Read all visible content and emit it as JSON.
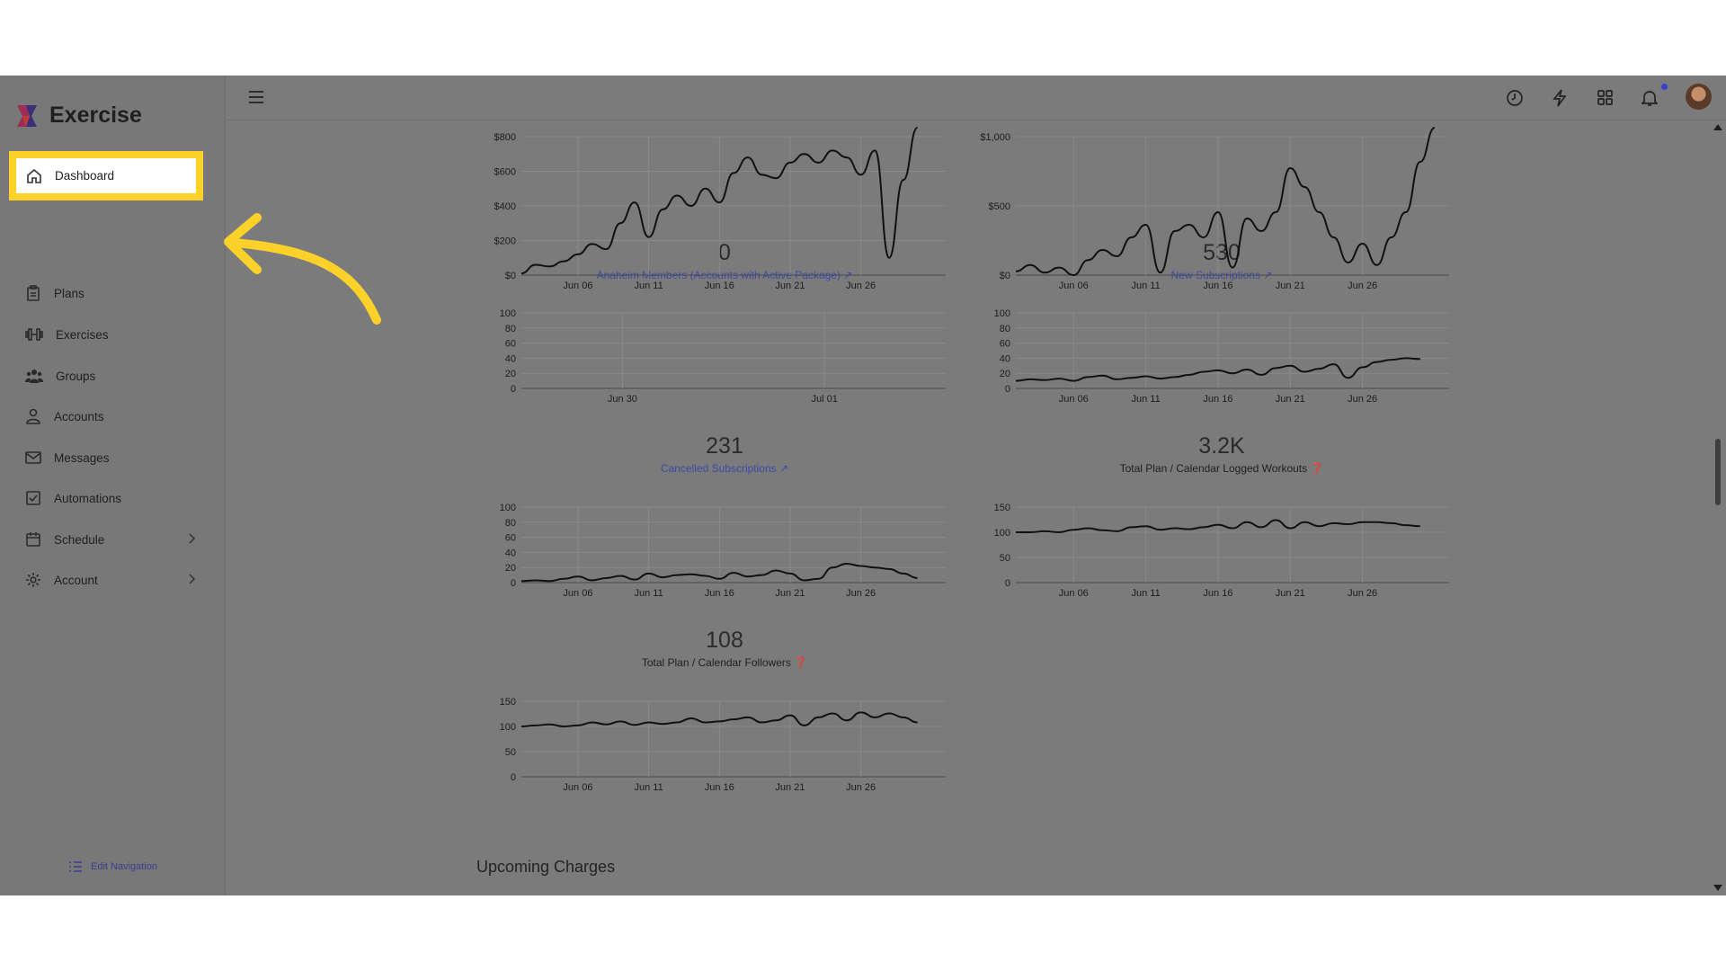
{
  "app": {
    "brand": "Exercise"
  },
  "sidebar": {
    "items": [
      {
        "label": "Dashboard",
        "icon": "home-icon",
        "active": true
      },
      {
        "label": "Plans",
        "icon": "clipboard-icon"
      },
      {
        "label": "Exercises",
        "icon": "dumbbell-icon"
      },
      {
        "label": "Groups",
        "icon": "users-icon"
      },
      {
        "label": "Accounts",
        "icon": "user-icon"
      },
      {
        "label": "Messages",
        "icon": "envelope-icon"
      },
      {
        "label": "Automations",
        "icon": "check-square-icon"
      },
      {
        "label": "Schedule",
        "icon": "calendar-icon",
        "expandable": true
      },
      {
        "label": "Account",
        "icon": "gear-icon",
        "expandable": true
      }
    ],
    "edit_navigation": "Edit Navigation"
  },
  "topbar": {
    "icons": [
      "menu-icon",
      "clock-icon",
      "lightning-icon",
      "apps-grid-icon",
      "bell-icon",
      "avatar"
    ],
    "notification_dot_color": "#3c3fd3"
  },
  "colors": {
    "highlight": "#fcd12a",
    "overlay": "#7b7b7b",
    "link": "#3c4aa8"
  },
  "metrics": {
    "members": {
      "value": "0",
      "label": "Anaheim Members (Accounts with Active Package)"
    },
    "new_subs": {
      "value": "530",
      "label": "New Subscriptions"
    },
    "cancelled": {
      "value": "231",
      "label": "Cancelled Subscriptions"
    },
    "workouts": {
      "value": "3.2K",
      "label": "Total Plan / Calendar Logged Workouts"
    },
    "followers": {
      "value": "108",
      "label": "Total Plan / Calendar Followers"
    }
  },
  "chart_data": [
    {
      "id": "c1",
      "type": "line",
      "y_ticks": [
        "$0",
        "$200",
        "$400",
        "$600",
        "$800"
      ],
      "ylim": [
        0,
        800
      ],
      "x_ticks": [
        "Jun 06",
        "Jun 11",
        "Jun 16",
        "Jun 21",
        "Jun 26"
      ],
      "x_tick_pos": [
        4,
        9,
        14,
        19,
        24
      ],
      "xlim": [
        0,
        30
      ],
      "series": [
        {
          "x": [
            0,
            1,
            2,
            3,
            4,
            5,
            6,
            7,
            8,
            9,
            10,
            11,
            12,
            13,
            14,
            15,
            16,
            17,
            18,
            19,
            20,
            21,
            22,
            23,
            24,
            25,
            26,
            27,
            28
          ],
          "y": [
            10,
            60,
            50,
            80,
            120,
            180,
            150,
            300,
            420,
            220,
            380,
            460,
            400,
            500,
            420,
            590,
            680,
            580,
            560,
            650,
            700,
            650,
            720,
            680,
            580,
            720,
            100,
            550,
            900
          ]
        }
      ]
    },
    {
      "id": "c2",
      "type": "line",
      "y_ticks": [
        "$0",
        "$500",
        "$1,000"
      ],
      "ylim": [
        0,
        1100
      ],
      "x_ticks": [
        "Jun 06",
        "Jun 11",
        "Jun 16",
        "Jun 21",
        "Jun 26"
      ],
      "x_tick_pos": [
        4,
        9,
        14,
        19,
        24
      ],
      "xlim": [
        0,
        30
      ],
      "series": [
        {
          "x": [
            0,
            1,
            2,
            3,
            4,
            5,
            6,
            7,
            8,
            9,
            10,
            11,
            12,
            13,
            14,
            15,
            16,
            17,
            18,
            19,
            20,
            21,
            22,
            23,
            24,
            25,
            26,
            27,
            28,
            29
          ],
          "y": [
            30,
            80,
            20,
            60,
            0,
            120,
            200,
            150,
            300,
            400,
            20,
            350,
            400,
            300,
            500,
            60,
            450,
            350,
            500,
            850,
            700,
            500,
            300,
            100,
            250,
            80,
            300,
            500,
            900,
            1200
          ]
        }
      ]
    },
    {
      "id": "c3",
      "type": "line",
      "y_ticks": [
        "0",
        "20",
        "40",
        "60",
        "80",
        "100"
      ],
      "ylim": [
        0,
        100
      ],
      "x_ticks": [
        "Jun 30",
        "Jul 01"
      ],
      "x_tick_pos": [
        1,
        3
      ],
      "xlim": [
        0,
        4.2
      ],
      "series": []
    },
    {
      "id": "c4",
      "type": "line",
      "y_ticks": [
        "0",
        "20",
        "40",
        "60",
        "80",
        "100"
      ],
      "ylim": [
        0,
        100
      ],
      "x_ticks": [
        "Jun 06",
        "Jun 11",
        "Jun 16",
        "Jun 21",
        "Jun 26"
      ],
      "x_tick_pos": [
        4,
        9,
        14,
        19,
        24
      ],
      "xlim": [
        0,
        30
      ],
      "series": [
        {
          "x": [
            0,
            1,
            2,
            3,
            4,
            5,
            6,
            7,
            8,
            9,
            10,
            11,
            12,
            13,
            14,
            15,
            16,
            17,
            18,
            19,
            20,
            21,
            22,
            23,
            24,
            25,
            26,
            27,
            28
          ],
          "y": [
            10,
            12,
            11,
            13,
            10,
            15,
            17,
            12,
            14,
            16,
            13,
            15,
            18,
            22,
            24,
            20,
            25,
            18,
            27,
            30,
            22,
            26,
            32,
            14,
            28,
            35,
            38,
            40,
            39
          ]
        }
      ]
    },
    {
      "id": "c5",
      "type": "line",
      "y_ticks": [
        "0",
        "20",
        "40",
        "60",
        "80",
        "100"
      ],
      "ylim": [
        0,
        100
      ],
      "x_ticks": [
        "Jun 06",
        "Jun 11",
        "Jun 16",
        "Jun 21",
        "Jun 26"
      ],
      "x_tick_pos": [
        4,
        9,
        14,
        19,
        24
      ],
      "xlim": [
        0,
        30
      ],
      "series": [
        {
          "x": [
            0,
            1,
            2,
            3,
            4,
            5,
            6,
            7,
            8,
            9,
            10,
            11,
            12,
            13,
            14,
            15,
            16,
            17,
            18,
            19,
            20,
            21,
            22,
            23,
            24,
            25,
            26,
            27,
            28
          ],
          "y": [
            2,
            3,
            2,
            5,
            8,
            3,
            6,
            9,
            4,
            12,
            7,
            10,
            11,
            9,
            5,
            13,
            8,
            10,
            16,
            12,
            3,
            5,
            20,
            25,
            22,
            20,
            18,
            12,
            6
          ]
        }
      ]
    },
    {
      "id": "c6",
      "type": "line",
      "y_ticks": [
        "0",
        "50",
        "100",
        "150"
      ],
      "ylim": [
        0,
        150
      ],
      "x_ticks": [
        "Jun 06",
        "Jun 11",
        "Jun 16",
        "Jun 21",
        "Jun 26"
      ],
      "x_tick_pos": [
        4,
        9,
        14,
        19,
        24
      ],
      "xlim": [
        0,
        30
      ],
      "series": [
        {
          "x": [
            0,
            1,
            2,
            3,
            4,
            5,
            6,
            7,
            8,
            9,
            10,
            11,
            12,
            13,
            14,
            15,
            16,
            17,
            18,
            19,
            20,
            21,
            22,
            23,
            24,
            25,
            26,
            27,
            28
          ],
          "y": [
            100,
            100,
            102,
            100,
            105,
            108,
            104,
            102,
            110,
            112,
            105,
            108,
            106,
            110,
            115,
            108,
            120,
            110,
            124,
            108,
            120,
            112,
            118,
            116,
            120,
            120,
            118,
            114,
            112
          ]
        }
      ]
    },
    {
      "id": "c7",
      "type": "line",
      "y_ticks": [
        "0",
        "50",
        "100",
        "150"
      ],
      "ylim": [
        0,
        150
      ],
      "x_ticks": [
        "Jun 06",
        "Jun 11",
        "Jun 16",
        "Jun 21",
        "Jun 26"
      ],
      "x_tick_pos": [
        4,
        9,
        14,
        19,
        24
      ],
      "xlim": [
        0,
        30
      ],
      "series": [
        {
          "x": [
            0,
            1,
            2,
            3,
            4,
            5,
            6,
            7,
            8,
            9,
            10,
            11,
            12,
            13,
            14,
            15,
            16,
            17,
            18,
            19,
            20,
            21,
            22,
            23,
            24,
            25,
            26,
            27,
            28
          ],
          "y": [
            100,
            102,
            104,
            100,
            102,
            108,
            104,
            110,
            103,
            108,
            105,
            108,
            116,
            108,
            110,
            114,
            118,
            108,
            112,
            122,
            102,
            118,
            126,
            112,
            128,
            118,
            126,
            118,
            108
          ]
        }
      ]
    }
  ],
  "upcoming": {
    "title": "Upcoming Charges"
  }
}
